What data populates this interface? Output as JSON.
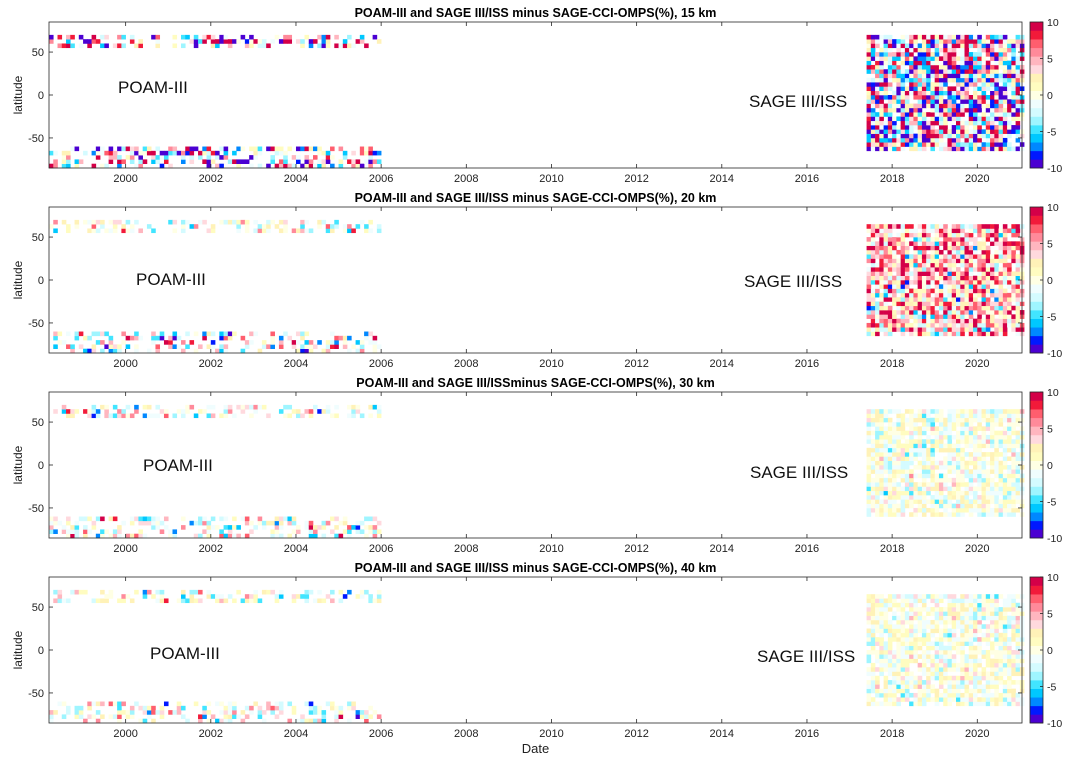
{
  "colors": {
    "colormap": [
      "#4b00d2",
      "#0019ff",
      "#0088ff",
      "#00c8ff",
      "#42e5ff",
      "#9ff5ff",
      "#d4fbff",
      "#f0fdfe",
      "#ffffe4",
      "#fffcc0",
      "#fff2b8",
      "#ffd9de",
      "#ffb6bf",
      "#ff8a9a",
      "#ff5e6e",
      "#f21a3a",
      "#d40048"
    ]
  },
  "chart_data": [
    {
      "type": "heatmap",
      "title": "POAM-III  and SAGE III/ISS minus SAGE-CCI-OMPS(%), 15 km",
      "ylabel": "latitude",
      "xlabel": "",
      "xlim": [
        1998.2,
        2021.05
      ],
      "ylim": [
        -85,
        85
      ],
      "xticks": [
        "2000",
        "2002",
        "2004",
        "2006",
        "2008",
        "2010",
        "2012",
        "2014",
        "2016",
        "2018",
        "2020"
      ],
      "yticks": [
        "50",
        "0",
        "-50"
      ],
      "clim": [
        -10,
        10
      ],
      "colorbar_ticks": [
        "10",
        "5",
        "0",
        "-5",
        "-10"
      ],
      "annotations": [
        "POAM-III",
        "SAGE III/ISS"
      ],
      "groups": [
        {
          "x_range": [
            1998.2,
            2005.95
          ],
          "lat_range": [
            55,
            70
          ],
          "density": 0.45,
          "spread": 11
        },
        {
          "x_range": [
            1998.2,
            2005.95
          ],
          "lat_range": [
            -85,
            -60
          ],
          "density": 0.45,
          "spread": 11
        },
        {
          "x_range": [
            2017.4,
            2021.05
          ],
          "lat_range": [
            -65,
            70
          ],
          "density": 0.88,
          "spread": 12
        }
      ]
    },
    {
      "type": "heatmap",
      "title": "POAM-III  and SAGE III/ISS minus SAGE-CCI-OMPS(%), 20 km",
      "ylabel": "latitude",
      "xlabel": "",
      "xlim": [
        1998.2,
        2021.05
      ],
      "ylim": [
        -85,
        85
      ],
      "xticks": [
        "2000",
        "2002",
        "2004",
        "2006",
        "2008",
        "2010",
        "2012",
        "2014",
        "2016",
        "2018",
        "2020"
      ],
      "yticks": [
        "50",
        "0",
        "-50"
      ],
      "clim": [
        -10,
        10
      ],
      "colorbar_ticks": [
        "10",
        "5",
        "0",
        "-5",
        "-10"
      ],
      "annotations": [
        "POAM-III",
        "SAGE III/ISS"
      ],
      "groups": [
        {
          "x_range": [
            1998.2,
            2005.95
          ],
          "lat_range": [
            55,
            70
          ],
          "density": 0.45,
          "spread": 5
        },
        {
          "x_range": [
            1998.2,
            2005.95
          ],
          "lat_range": [
            -85,
            -60
          ],
          "density": 0.45,
          "spread": 7
        },
        {
          "x_range": [
            2017.4,
            2021.05
          ],
          "lat_range": [
            -65,
            65
          ],
          "density": 0.9,
          "spread": 7,
          "bias": 4
        }
      ]
    },
    {
      "type": "heatmap",
      "title": "POAM-III  and SAGE III/ISSminus SAGE-CCI-OMPS(%), 30 km",
      "ylabel": "latitude",
      "xlabel": "",
      "xlim": [
        1998.2,
        2021.05
      ],
      "ylim": [
        -85,
        85
      ],
      "xticks": [
        "2000",
        "2002",
        "2004",
        "2006",
        "2008",
        "2010",
        "2012",
        "2014",
        "2016",
        "2018",
        "2020"
      ],
      "yticks": [
        "50",
        "0",
        "-50"
      ],
      "clim": [
        -10,
        10
      ],
      "colorbar_ticks": [
        "10",
        "5",
        "0",
        "-5",
        "-10"
      ],
      "annotations": [
        "POAM-III",
        "SAGE III/ISS"
      ],
      "groups": [
        {
          "x_range": [
            1998.2,
            2005.95
          ],
          "lat_range": [
            55,
            70
          ],
          "density": 0.45,
          "spread": 5
        },
        {
          "x_range": [
            1998.2,
            2005.95
          ],
          "lat_range": [
            -85,
            -60
          ],
          "density": 0.45,
          "spread": 6
        },
        {
          "x_range": [
            2017.4,
            2021.05
          ],
          "lat_range": [
            -60,
            65
          ],
          "density": 0.88,
          "spread": 3
        }
      ]
    },
    {
      "type": "heatmap",
      "title": "POAM-III and SAGE III/ISS minus SAGE-CCI-OMPS(%), 40 km",
      "ylabel": "latitude",
      "xlabel": "Date",
      "xlim": [
        1998.2,
        2021.05
      ],
      "ylim": [
        -85,
        85
      ],
      "xticks": [
        "2000",
        "2002",
        "2004",
        "2006",
        "2008",
        "2010",
        "2012",
        "2014",
        "2016",
        "2018",
        "2020"
      ],
      "yticks": [
        "50",
        "0",
        "-50"
      ],
      "clim": [
        -10,
        10
      ],
      "colorbar_ticks": [
        "10",
        "5",
        "0",
        "-5",
        "-10"
      ],
      "annotations": [
        "POAM-III",
        "SAGE III/ISS"
      ],
      "groups": [
        {
          "x_range": [
            1998.2,
            2005.95
          ],
          "lat_range": [
            55,
            70
          ],
          "density": 0.45,
          "spread": 5
        },
        {
          "x_range": [
            1998.2,
            2005.95
          ],
          "lat_range": [
            -85,
            -60
          ],
          "density": 0.45,
          "spread": 6
        },
        {
          "x_range": [
            2017.4,
            2021.05
          ],
          "lat_range": [
            -65,
            65
          ],
          "density": 0.88,
          "spread": 3
        }
      ]
    }
  ]
}
